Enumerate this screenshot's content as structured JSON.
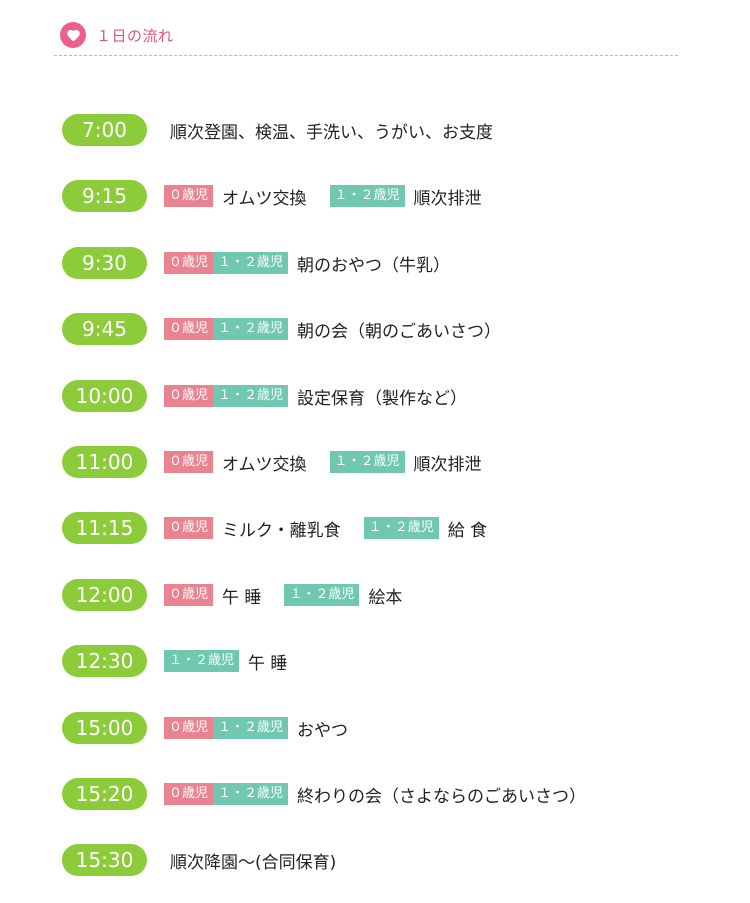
{
  "header": {
    "title": "１日の流れ",
    "icon": "heart-icon"
  },
  "colors": {
    "pill": "#8ccb3a",
    "badge_age0": "#e8838f",
    "badge_age12": "#70c8b0",
    "heart_bg": "#ef5f8c",
    "header_text": "#e8527c",
    "divider": "#f39ab5"
  },
  "schedule": [
    {
      "time": "7:00",
      "cells": [
        {
          "type": "text",
          "text": "順次登園、検温、手洗い、うがい、お支度"
        }
      ]
    },
    {
      "time": "9:15",
      "cells": [
        {
          "type": "badge",
          "kind": "age0",
          "label": "０歳児"
        },
        {
          "type": "text",
          "text": "オムツ交換"
        },
        {
          "type": "badge",
          "kind": "age12",
          "label": "１・２歳児"
        },
        {
          "type": "text",
          "text": "順次排泄"
        }
      ]
    },
    {
      "time": "9:30",
      "cells": [
        {
          "type": "badge",
          "kind": "age0",
          "label": "０歳児"
        },
        {
          "type": "badge",
          "kind": "age12",
          "label": "１・２歳児"
        },
        {
          "type": "text",
          "text": "朝のおやつ（牛乳）"
        }
      ]
    },
    {
      "time": "9:45",
      "cells": [
        {
          "type": "badge",
          "kind": "age0",
          "label": "０歳児"
        },
        {
          "type": "badge",
          "kind": "age12",
          "label": "１・２歳児"
        },
        {
          "type": "text",
          "text": "朝の会（朝のごあいさつ）"
        }
      ]
    },
    {
      "time": "10:00",
      "cells": [
        {
          "type": "badge",
          "kind": "age0",
          "label": "０歳児"
        },
        {
          "type": "badge",
          "kind": "age12",
          "label": "１・２歳児"
        },
        {
          "type": "text",
          "text": "設定保育（製作など）"
        }
      ]
    },
    {
      "time": "11:00",
      "cells": [
        {
          "type": "badge",
          "kind": "age0",
          "label": "０歳児"
        },
        {
          "type": "text",
          "text": "オムツ交換"
        },
        {
          "type": "badge",
          "kind": "age12",
          "label": "１・２歳児"
        },
        {
          "type": "text",
          "text": "順次排泄"
        }
      ]
    },
    {
      "time": "11:15",
      "cells": [
        {
          "type": "badge",
          "kind": "age0",
          "label": "０歳児"
        },
        {
          "type": "text",
          "text": "ミルク・離乳食"
        },
        {
          "type": "badge",
          "kind": "age12",
          "label": "１・２歳児"
        },
        {
          "type": "text",
          "text": "給 食"
        }
      ]
    },
    {
      "time": "12:00",
      "cells": [
        {
          "type": "badge",
          "kind": "age0",
          "label": "０歳児"
        },
        {
          "type": "text",
          "text": "午 睡"
        },
        {
          "type": "badge",
          "kind": "age12",
          "label": "１・２歳児"
        },
        {
          "type": "text",
          "text": "絵本"
        }
      ]
    },
    {
      "time": "12:30",
      "cells": [
        {
          "type": "badge",
          "kind": "age12",
          "label": "１・２歳児"
        },
        {
          "type": "text",
          "text": "午 睡"
        }
      ]
    },
    {
      "time": "15:00",
      "cells": [
        {
          "type": "badge",
          "kind": "age0",
          "label": "０歳児"
        },
        {
          "type": "badge",
          "kind": "age12",
          "label": "１・２歳児"
        },
        {
          "type": "text",
          "text": "おやつ"
        }
      ]
    },
    {
      "time": "15:20",
      "cells": [
        {
          "type": "badge",
          "kind": "age0",
          "label": "０歳児"
        },
        {
          "type": "badge",
          "kind": "age12",
          "label": "１・２歳児"
        },
        {
          "type": "text",
          "text": "終わりの会（さよならのごあいさつ）"
        }
      ]
    },
    {
      "time": "15:30",
      "cells": [
        {
          "type": "text",
          "text": "順次降園〜(合同保育)"
        }
      ]
    }
  ]
}
